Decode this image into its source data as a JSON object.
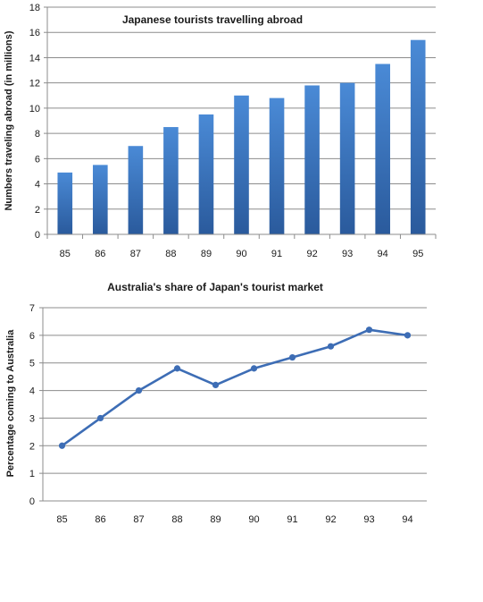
{
  "chart_data": [
    {
      "type": "bar",
      "title": "Japanese tourists travelling abroad",
      "xlabel": "",
      "ylabel": "Numbers  traveling  abroad  (in millions)",
      "categories": [
        "85",
        "86",
        "87",
        "88",
        "89",
        "90",
        "91",
        "92",
        "93",
        "94",
        "95"
      ],
      "values": [
        4.9,
        5.5,
        7.0,
        8.5,
        9.5,
        11.0,
        10.8,
        11.8,
        12.0,
        13.5,
        15.4
      ],
      "ylim": [
        0,
        18
      ],
      "yticks": [
        "0",
        "2",
        "4",
        "6",
        "8",
        "10",
        "12",
        "14",
        "16",
        "18"
      ],
      "grid": true,
      "legend": "none",
      "color": "#3a78c2"
    },
    {
      "type": "line",
      "title": "Australia's share of Japan's tourist market",
      "xlabel": "",
      "ylabel": "Percentage  coming  to  Australia",
      "categories": [
        "85",
        "86",
        "87",
        "88",
        "89",
        "90",
        "91",
        "92",
        "93",
        "94"
      ],
      "values": [
        2.0,
        3.0,
        4.0,
        4.8,
        4.2,
        4.8,
        5.2,
        5.6,
        6.2,
        6.0
      ],
      "ylim": [
        0,
        7
      ],
      "yticks": [
        "0",
        "1",
        "2",
        "3",
        "4",
        "5",
        "6",
        "7"
      ],
      "grid": true,
      "legend": "none",
      "color": "#3d6db5"
    }
  ]
}
